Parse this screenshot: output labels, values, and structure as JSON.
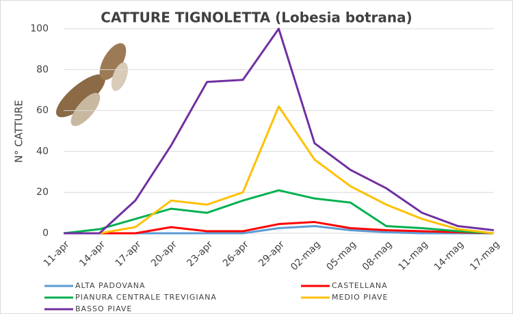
{
  "chart_data": {
    "type": "line",
    "title": "CATTURE TIGNOLETTA (Lobesia botrana)",
    "y_label": "N° CATTURE",
    "categories": [
      "11-apr",
      "14-apr",
      "17-apr",
      "20-apr",
      "23-apr",
      "26-apr",
      "29-apr",
      "02-mag",
      "05-mag",
      "08-mag",
      "11-mag",
      "14-mag",
      "17-mag"
    ],
    "series": [
      {
        "name": "ALTA PADOVANA",
        "color": "#5b9bd5",
        "values": [
          0,
          0,
          0,
          0,
          0,
          0,
          2.5,
          3.5,
          1.5,
          0.5,
          0,
          0,
          0
        ]
      },
      {
        "name": "CASTELLANA",
        "color": "#ff0000",
        "values": [
          0,
          0,
          0,
          3,
          1,
          1,
          4.5,
          5.5,
          2.5,
          1.5,
          1,
          0.5,
          0
        ]
      },
      {
        "name": "PIANURA CENTRALE TREVIGIANA",
        "color": "#00b050",
        "values": [
          0,
          2,
          7,
          12,
          10,
          16,
          21,
          17,
          15,
          3.5,
          2.5,
          1,
          0
        ]
      },
      {
        "name": "MEDIO PIAVE",
        "color": "#ffc000",
        "values": [
          0,
          0,
          3,
          16,
          14,
          20,
          62,
          36,
          23,
          14,
          7,
          2,
          0
        ]
      },
      {
        "name": "BASSO PIAVE",
        "color": "#7030a0",
        "values": [
          0,
          0,
          16,
          43,
          74,
          75,
          100,
          44,
          31,
          22,
          10,
          3.5,
          1.5
        ]
      }
    ],
    "ylim": [
      0,
      100
    ],
    "yticks": [
      0,
      20,
      40,
      60,
      80,
      100
    ],
    "grid": true
  }
}
